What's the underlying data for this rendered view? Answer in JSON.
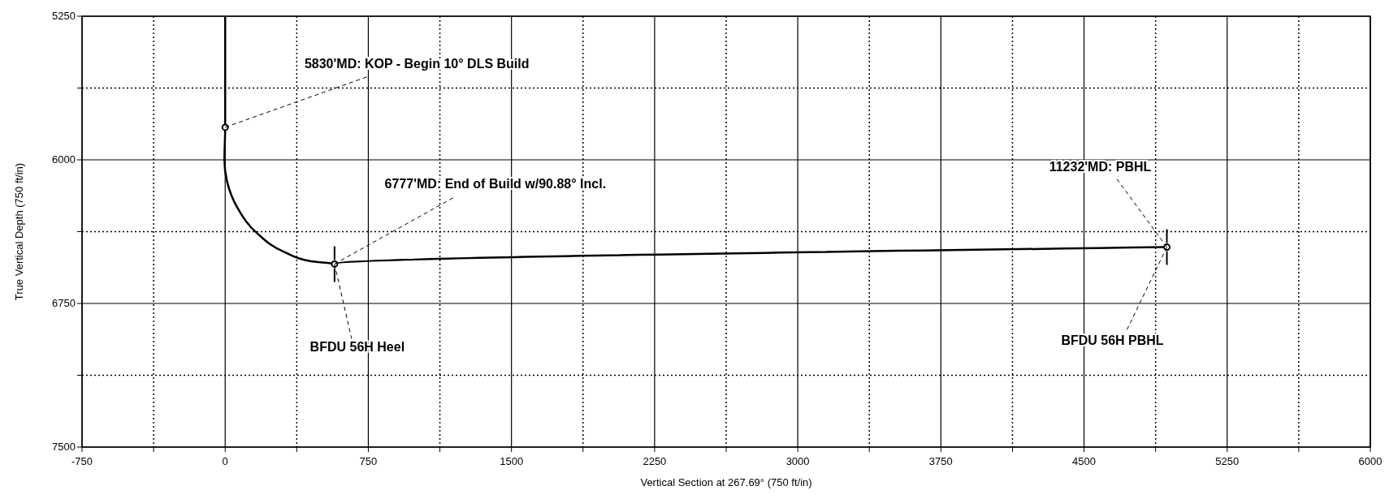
{
  "chart_data": {
    "type": "line",
    "xlabel": "Vertical Section at 267.69° (750 ft/in)",
    "ylabel": "True Vertical Depth (750 ft/in)",
    "xlim": [
      -750,
      6000
    ],
    "ylim": [
      7500,
      5250
    ],
    "xticks": [
      -750,
      {
        "value": -375,
        "label": null
      },
      0,
      {
        "value": 375,
        "label": null
      },
      750,
      {
        "value": 1125,
        "label": null
      },
      1500,
      {
        "value": 1875,
        "label": null
      },
      2250,
      {
        "value": 2625,
        "label": null
      },
      3000,
      {
        "value": 3375,
        "label": null
      },
      3750,
      {
        "value": 4125,
        "label": null
      },
      4500,
      {
        "value": 4875,
        "label": null
      },
      5250,
      {
        "value": 5625,
        "label": null
      },
      6000
    ],
    "yticks": [
      5250,
      {
        "value": 5625,
        "label": null
      },
      6000,
      {
        "value": 6375,
        "label": null
      },
      6750,
      {
        "value": 7125,
        "label": null
      },
      7500
    ],
    "grid": true,
    "series": [
      {
        "type": "line",
        "color": "#000000",
        "marker": "none",
        "x": [
          0,
          0,
          -4,
          10,
          67,
          166,
          308,
          450,
          573,
          4934
        ],
        "values": [
          5250,
          5830,
          6000,
          6114,
          6255,
          6382,
          6480,
          6530,
          6544,
          6456
        ]
      },
      {
        "type": "scatter",
        "color": "#000000",
        "marker": "circle",
        "x": [
          0,
          573,
          4934
        ],
        "values": [
          5830,
          6544,
          6456
        ]
      }
    ],
    "annotations": [
      {
        "text": "5830'MD: KOP - Begin 10° DLS Build",
        "x": 0,
        "y": 5830
      },
      {
        "text": "6777'MD: End of Build w/90.88° Incl.",
        "x": 573,
        "y": 6544
      },
      {
        "text": "11232'MD: PBHL",
        "x": 4934,
        "y": 6456
      },
      {
        "text": "BFDU 56H Heel",
        "x": 573,
        "y": 6544
      },
      {
        "text": "BFDU 56H PBHL",
        "x": 4934,
        "y": 6456
      }
    ]
  }
}
